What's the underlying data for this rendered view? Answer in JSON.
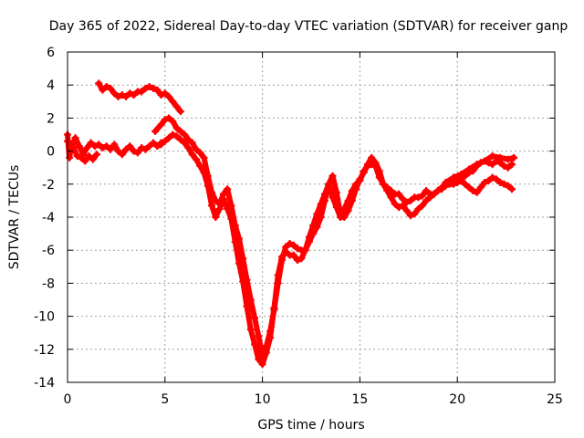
{
  "chart_data": {
    "type": "line",
    "title": "Day 365 of 2022, Sidereal Day-to-day VTEC variation (SDTVAR) for receiver ganp",
    "xlabel": "GPS time / hours",
    "ylabel": "SDTVAR / TECUs",
    "xlim": [
      0,
      25
    ],
    "ylim": [
      -14,
      6
    ],
    "xticks": [
      0,
      5,
      10,
      15,
      20,
      25
    ],
    "yticks": [
      -14,
      -12,
      -10,
      -8,
      -6,
      -4,
      -2,
      0,
      2,
      4,
      6
    ],
    "grid": true,
    "series_color": "#ff0000",
    "marker": "+",
    "series": [
      {
        "x": [
          0.0,
          0.2,
          0.4,
          0.6,
          0.8,
          1.0,
          1.2,
          1.4,
          1.6,
          1.8,
          2.0,
          2.2,
          2.4,
          2.6,
          2.8,
          3.0,
          3.2,
          3.4,
          3.6,
          3.8,
          4.0,
          4.2,
          4.4,
          4.6,
          4.8
        ],
        "y": [
          0.6,
          0.2,
          0.8,
          0.3,
          -0.2,
          0.2,
          0.5,
          0.3,
          0.4,
          0.2,
          0.3,
          0.1,
          0.4,
          0.0,
          -0.2,
          0.1,
          0.3,
          0.0,
          -0.1,
          0.2,
          0.1,
          0.3,
          0.5,
          0.3,
          0.4
        ]
      },
      {
        "x": [
          0.0,
          0.1,
          0.2,
          0.3,
          0.5,
          0.7,
          0.9,
          1.1,
          1.3,
          1.5
        ],
        "y": [
          1.0,
          -0.4,
          0.4,
          0.2,
          -0.3,
          -0.4,
          -0.6,
          -0.3,
          -0.5,
          -0.2
        ]
      },
      {
        "x": [
          1.6,
          1.8,
          2.0,
          2.2,
          2.4,
          2.6,
          2.8,
          3.0,
          3.2,
          3.4,
          3.6,
          3.8,
          4.0,
          4.2,
          4.4,
          4.6,
          4.8,
          5.0,
          5.2,
          5.4,
          5.6,
          5.8
        ],
        "y": [
          4.1,
          3.7,
          3.9,
          3.8,
          3.5,
          3.3,
          3.4,
          3.3,
          3.5,
          3.4,
          3.6,
          3.6,
          3.8,
          3.9,
          3.8,
          3.7,
          3.4,
          3.5,
          3.3,
          3.0,
          2.7,
          2.4
        ]
      },
      {
        "x": [
          4.5,
          4.8,
          5.0,
          5.2,
          5.4,
          5.6,
          5.8,
          6.0,
          6.2,
          6.4,
          6.6,
          6.8,
          7.0,
          7.2,
          7.4,
          7.6,
          7.8,
          8.0,
          8.2,
          8.4,
          8.6,
          8.8,
          9.0,
          9.2,
          9.4,
          9.6,
          9.8,
          10.0,
          10.2,
          10.4,
          10.6,
          10.8,
          11.0,
          11.2,
          11.4,
          11.6,
          11.8,
          12.0,
          12.2,
          12.4,
          12.6,
          12.8,
          13.0,
          13.2,
          13.4,
          13.6,
          13.8,
          14.0,
          14.2,
          14.4,
          14.6,
          14.8,
          15.0,
          15.2,
          15.4,
          15.6,
          15.8,
          16.0,
          16.2,
          16.4,
          16.6,
          16.8,
          17.0,
          17.2,
          17.4,
          17.6,
          17.8,
          18.0,
          18.2,
          18.4,
          18.6,
          18.8,
          19.0,
          19.2,
          19.4,
          19.6,
          19.8,
          20.0,
          20.2,
          20.4,
          20.6,
          20.8,
          21.0,
          21.2,
          21.4,
          21.6,
          21.8,
          22.0,
          22.2,
          22.4,
          22.6,
          22.8
        ],
        "y": [
          1.2,
          1.6,
          1.9,
          2.0,
          1.8,
          1.4,
          1.2,
          1.0,
          0.7,
          0.5,
          0.1,
          -0.1,
          -0.4,
          -1.5,
          -2.5,
          -3.0,
          -3.2,
          -2.6,
          -2.3,
          -3.3,
          -4.5,
          -5.3,
          -6.5,
          -7.8,
          -9.0,
          -10.1,
          -11.2,
          -12.4,
          -11.8,
          -10.9,
          -9.6,
          -8.0,
          -6.6,
          -5.8,
          -5.6,
          -5.7,
          -5.9,
          -6.0,
          -6.0,
          -5.5,
          -5.0,
          -4.6,
          -4.0,
          -3.0,
          -2.0,
          -1.5,
          -2.5,
          -3.8,
          -3.5,
          -3.0,
          -2.4,
          -2.0,
          -1.8,
          -1.2,
          -0.9,
          -0.8,
          -0.9,
          -1.6,
          -2.0,
          -2.2,
          -2.4,
          -2.6,
          -2.6,
          -2.9,
          -3.1,
          -3.0,
          -2.8,
          -2.8,
          -2.7,
          -2.4,
          -2.6,
          -2.6,
          -2.4,
          -2.2,
          -2.0,
          -1.9,
          -1.8,
          -1.7,
          -1.6,
          -1.5,
          -1.3,
          -1.2,
          -0.9,
          -0.7,
          -0.6,
          -0.7,
          -0.8,
          -0.6,
          -0.7,
          -0.9,
          -1.0,
          -0.8
        ]
      },
      {
        "x": [
          4.8,
          5.0,
          5.2,
          5.4,
          5.6,
          5.8,
          6.0,
          6.2,
          6.4,
          6.6,
          6.8,
          7.0,
          7.2,
          7.4,
          7.6,
          7.8,
          8.0,
          8.2,
          8.4,
          8.6,
          8.8,
          9.0,
          9.2,
          9.4,
          9.6,
          9.8,
          10.0,
          10.2,
          10.4,
          10.6,
          10.8,
          11.0,
          11.2,
          11.4,
          11.6,
          11.8,
          12.0,
          12.2,
          12.4,
          12.6,
          12.8,
          13.0,
          13.2,
          13.4,
          13.6,
          13.8,
          14.0,
          14.2,
          14.4,
          14.6,
          14.8,
          15.0,
          15.2,
          15.4,
          15.6,
          15.8,
          16.0,
          16.2,
          16.4,
          16.6,
          16.8,
          17.0,
          17.2,
          17.4,
          17.6,
          17.8,
          18.0,
          18.2,
          18.4,
          18.6,
          18.8,
          19.0,
          19.2,
          19.4,
          19.6,
          19.8,
          20.0,
          20.2,
          20.4,
          20.6,
          20.8,
          21.0,
          21.2,
          21.4,
          21.6,
          21.8,
          22.0,
          22.2,
          22.4,
          22.6,
          22.8
        ],
        "y": [
          0.5,
          0.6,
          0.8,
          1.0,
          0.9,
          0.7,
          0.5,
          0.2,
          -0.2,
          -0.5,
          -0.9,
          -1.3,
          -2.1,
          -3.3,
          -4.0,
          -3.5,
          -2.9,
          -3.5,
          -4.1,
          -5.5,
          -6.8,
          -7.9,
          -9.4,
          -10.8,
          -11.7,
          -12.6,
          -12.9,
          -12.2,
          -11.3,
          -9.5,
          -7.5,
          -6.4,
          -6.1,
          -6.3,
          -6.3,
          -6.6,
          -6.5,
          -6.0,
          -5.2,
          -4.5,
          -3.8,
          -3.2,
          -2.6,
          -2.0,
          -2.8,
          -3.4,
          -4.0,
          -4.0,
          -3.6,
          -3.0,
          -2.3,
          -1.7,
          -1.3,
          -0.8,
          -0.4,
          -0.7,
          -1.2,
          -2.0,
          -2.4,
          -2.8,
          -3.2,
          -3.4,
          -3.3,
          -3.6,
          -3.9,
          -3.8,
          -3.5,
          -3.3,
          -3.0,
          -2.8,
          -2.6,
          -2.4,
          -2.3,
          -2.1,
          -2.0,
          -2.0,
          -1.9,
          -1.8,
          -2.0,
          -2.2,
          -2.4,
          -2.5,
          -2.2,
          -1.9,
          -1.8,
          -1.6,
          -1.7,
          -1.9,
          -2.0,
          -2.1,
          -2.3
        ]
      },
      {
        "x": [
          19.4,
          19.8,
          20.2,
          20.6,
          21.0,
          21.4,
          21.8,
          22.2,
          22.6,
          22.9
        ],
        "y": [
          -1.9,
          -1.6,
          -1.4,
          -1.1,
          -0.8,
          -0.6,
          -0.3,
          -0.4,
          -0.5,
          -0.4
        ]
      }
    ]
  }
}
